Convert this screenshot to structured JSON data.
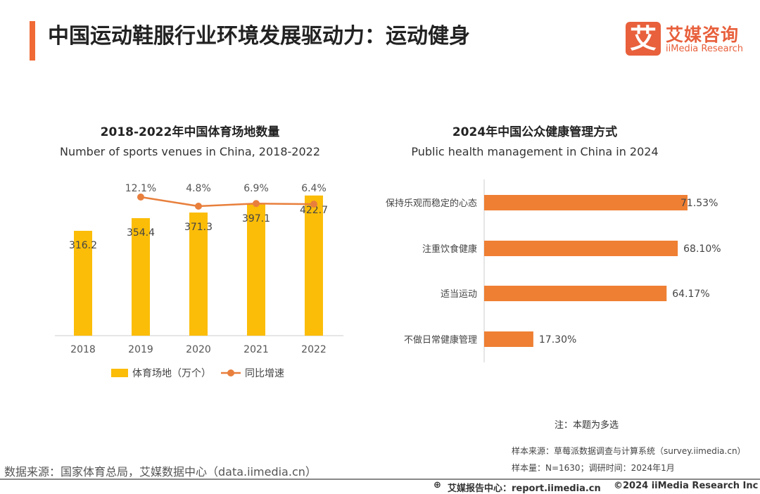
{
  "header": {
    "title": "中国运动鞋服行业环境发展驱动力：运动健身",
    "logo_mark": "艾",
    "logo_cn": "艾媒咨询",
    "logo_en": "iiMedia Research"
  },
  "colors": {
    "accent": "#f06a35",
    "bar_yellow": "#fbbd08",
    "line_orange": "#e87f3c",
    "hbar_orange": "#ef7f33"
  },
  "chart_data": [
    {
      "type": "bar+line",
      "title": "2018-2022年中国体育场地数量",
      "subtitle": "Number of sports venues in China, 2018-2022",
      "categories": [
        "2018",
        "2019",
        "2020",
        "2021",
        "2022"
      ],
      "series": [
        {
          "name": "体育场地（万个）",
          "type": "bar",
          "values": [
            316.2,
            354.4,
            371.3,
            397.1,
            422.7
          ],
          "labels": [
            "316.2",
            "354.4",
            "371.3",
            "397.1",
            "422.7"
          ]
        },
        {
          "name": "同比增速",
          "type": "line",
          "values": [
            null,
            12.1,
            4.8,
            6.9,
            6.4
          ],
          "labels": [
            "",
            "12.1%",
            "4.8%",
            "6.9%",
            "6.4%"
          ]
        }
      ],
      "legend": "bottom",
      "ylim": [
        0,
        450
      ]
    },
    {
      "type": "bar",
      "orientation": "horizontal",
      "title": "2024年中国公众健康管理方式",
      "subtitle": "Public health management in China in 2024",
      "categories": [
        "保持乐观而稳定的心态",
        "注重饮食健康",
        "适当运动",
        "不做日常健康管理"
      ],
      "values": [
        71.53,
        68.1,
        64.17,
        17.3
      ],
      "labels": [
        "71.53%",
        "68.10%",
        "64.17%",
        "17.30%"
      ],
      "xlim": [
        0,
        100
      ]
    }
  ],
  "notes": {
    "multi_select": "注：本题为多选",
    "sample_source": "样本来源：草莓派数据调查与计算系统（survey.iimedia.cn）",
    "sample_size": "样本量：N=1630；调研时间：2024年1月",
    "data_source": "数据来源：国家体育总局，艾媒数据中心（data.iimedia.cn）"
  },
  "footer": {
    "report": "艾媒报告中心：report.iimedia.cn",
    "copyright": "©2024  iiMedia Research  Inc"
  }
}
